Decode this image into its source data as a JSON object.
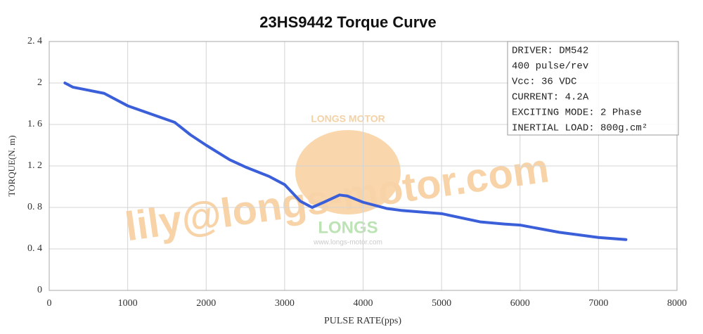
{
  "chart_data": {
    "type": "line",
    "title": "23HS9442 Torque Curve",
    "xlabel": "PULSE  RATE(pps)",
    "ylabel": "TORQUE(N. m)",
    "xlim": [
      0,
      8000
    ],
    "xticks": [
      0,
      1000,
      2000,
      3000,
      4000,
      5000,
      6000,
      7000,
      8000
    ],
    "ylim": [
      0,
      2.4
    ],
    "yticks": [
      0,
      {
        "value": 0.4,
        "label": "0. 4"
      },
      {
        "value": 0.8,
        "label": "0. 8"
      },
      {
        "value": 1.2,
        "label": "1. 2"
      },
      {
        "value": 1.6,
        "label": "1. 6"
      },
      2,
      {
        "value": 2.4,
        "label": "2. 4"
      }
    ],
    "grid": true,
    "color": "#3a5fd9",
    "x": [
      200,
      300,
      500,
      700,
      1000,
      1300,
      1600,
      1800,
      2000,
      2300,
      2500,
      2800,
      3000,
      3200,
      3350,
      3500,
      3700,
      3800,
      4000,
      4300,
      4500,
      5000,
      5500,
      5800,
      6000,
      6500,
      7000,
      7350
    ],
    "values": [
      2.0,
      1.96,
      1.93,
      1.9,
      1.78,
      1.7,
      1.62,
      1.5,
      1.4,
      1.26,
      1.19,
      1.1,
      1.02,
      0.86,
      0.8,
      0.85,
      0.92,
      0.91,
      0.85,
      0.79,
      0.77,
      0.74,
      0.66,
      0.64,
      0.63,
      0.56,
      0.51,
      0.49
    ],
    "annotations": [
      "DRIVER: DM542",
      "400  pulse/rev",
      "Vcc: 36 VDC",
      "CURRENT: 4.2A",
      "EXCITING MODE: 2 Phase",
      "INERTIAL LOAD: 800g.cm²"
    ],
    "watermark": {
      "email": "lily@longs-motor.com",
      "brand": "LONGS",
      "arc": "LONGS MOTOR",
      "site": "www.longs-motor.com"
    }
  }
}
